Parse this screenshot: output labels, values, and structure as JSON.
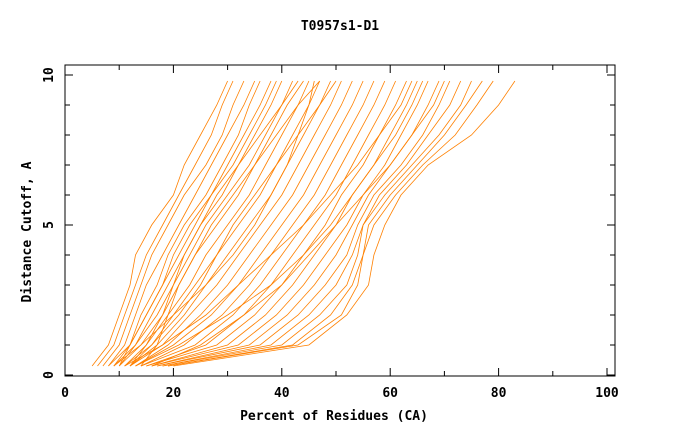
{
  "chart_data": {
    "type": "line",
    "title": "T0957s1-D1",
    "xlabel": "Percent of Residues (CA)",
    "ylabel": "Distance Cutoff, A",
    "xlim": [
      0,
      100
    ],
    "ylim": [
      0,
      10
    ],
    "xticks": [
      "0",
      "20",
      "40",
      "60",
      "80",
      "100"
    ],
    "yticks": [
      "0",
      "5",
      "10"
    ],
    "grid": false,
    "line_color": "#ff8000",
    "y": [
      0.3,
      1,
      2,
      3,
      4,
      5,
      6,
      7,
      8,
      9,
      9.8
    ],
    "series": [
      {
        "x": [
          5,
          8,
          10,
          12,
          13,
          16,
          20,
          22,
          25,
          28,
          30
        ]
      },
      {
        "x": [
          6,
          9,
          11,
          13,
          15,
          18,
          21,
          24,
          27,
          29,
          31
        ]
      },
      {
        "x": [
          7,
          10,
          12,
          14,
          16,
          19,
          22,
          26,
          29,
          31,
          33
        ]
      },
      {
        "x": [
          8,
          11,
          13,
          15,
          18,
          21,
          24,
          27,
          30,
          33,
          35
        ]
      },
      {
        "x": [
          8,
          12,
          14,
          17,
          19,
          22,
          26,
          29,
          32,
          34,
          36
        ]
      },
      {
        "x": [
          9,
          12,
          15,
          18,
          21,
          24,
          27,
          30,
          33,
          36,
          38
        ]
      },
      {
        "x": [
          9,
          13,
          16,
          19,
          22,
          25,
          29,
          32,
          35,
          38,
          40
        ]
      },
      {
        "x": [
          10,
          13,
          17,
          20,
          23,
          26,
          30,
          34,
          37,
          40,
          42
        ]
      },
      {
        "x": [
          10,
          14,
          18,
          21,
          24,
          28,
          32,
          35,
          38,
          41,
          44
        ]
      },
      {
        "x": [
          11,
          15,
          19,
          23,
          26,
          30,
          34,
          37,
          40,
          43,
          45
        ]
      },
      {
        "x": [
          11,
          16,
          20,
          24,
          28,
          32,
          36,
          39,
          42,
          45,
          47
        ]
      },
      {
        "x": [
          12,
          17,
          22,
          26,
          30,
          34,
          38,
          41,
          44,
          47,
          49
        ]
      },
      {
        "x": [
          12,
          18,
          23,
          28,
          32,
          36,
          40,
          43,
          46,
          49,
          51
        ]
      },
      {
        "x": [
          13,
          19,
          25,
          30,
          34,
          38,
          42,
          45,
          48,
          51,
          53
        ]
      },
      {
        "x": [
          13,
          20,
          27,
          32,
          36,
          40,
          44,
          47,
          50,
          53,
          55
        ]
      },
      {
        "x": [
          14,
          22,
          29,
          34,
          38,
          42,
          46,
          49,
          52,
          55,
          57
        ]
      },
      {
        "x": [
          14,
          24,
          31,
          36,
          40,
          44,
          48,
          51,
          54,
          57,
          59
        ]
      },
      {
        "x": [
          15,
          26,
          33,
          38,
          42,
          46,
          50,
          53,
          56,
          59,
          61
        ]
      },
      {
        "x": [
          15,
          28,
          35,
          40,
          44,
          48,
          51,
          55,
          58,
          61,
          63
        ]
      },
      {
        "x": [
          16,
          30,
          37,
          42,
          46,
          50,
          53,
          57,
          60,
          63,
          65
        ]
      },
      {
        "x": [
          16,
          32,
          39,
          44,
          48,
          52,
          55,
          59,
          62,
          65,
          67
        ]
      },
      {
        "x": [
          17,
          34,
          41,
          46,
          50,
          53,
          56,
          60,
          64,
          67,
          69
        ]
      },
      {
        "x": [
          17,
          36,
          43,
          48,
          52,
          54,
          57,
          62,
          66,
          69,
          71
        ]
      },
      {
        "x": [
          18,
          38,
          45,
          50,
          53,
          55,
          58,
          63,
          67,
          71,
          73
        ]
      },
      {
        "x": [
          18,
          40,
          47,
          52,
          54,
          55,
          59,
          64,
          69,
          73,
          75
        ]
      },
      {
        "x": [
          19,
          42,
          49,
          53,
          55,
          56,
          60,
          65,
          70,
          74,
          77
        ]
      },
      {
        "x": [
          19,
          43,
          51,
          54,
          55,
          57,
          61,
          66,
          72,
          76,
          79
        ]
      },
      {
        "x": [
          20,
          45,
          52,
          56,
          57,
          59,
          62,
          67,
          75,
          80,
          83
        ]
      },
      {
        "x": [
          9,
          14,
          20,
          26,
          31,
          35,
          38,
          41,
          43,
          45,
          46
        ]
      },
      {
        "x": [
          11,
          18,
          26,
          32,
          38,
          44,
          49,
          54,
          58,
          62,
          64
        ]
      },
      {
        "x": [
          12,
          15,
          18,
          20,
          22,
          25,
          28,
          32,
          36,
          40,
          43
        ]
      },
      {
        "x": [
          14,
          17,
          19,
          21,
          24,
          27,
          31,
          35,
          39,
          43,
          47
        ]
      },
      {
        "x": [
          10,
          12,
          15,
          18,
          20,
          23,
          27,
          31,
          34,
          37,
          39
        ]
      },
      {
        "x": [
          13,
          21,
          30,
          38,
          44,
          49,
          53,
          57,
          61,
          64,
          66
        ]
      },
      {
        "x": [
          16,
          25,
          33,
          40,
          45,
          50,
          55,
          60,
          64,
          68,
          70
        ]
      },
      {
        "x": [
          12,
          16,
          21,
          25,
          28,
          31,
          35,
          39,
          43,
          47,
          50
        ]
      }
    ]
  }
}
